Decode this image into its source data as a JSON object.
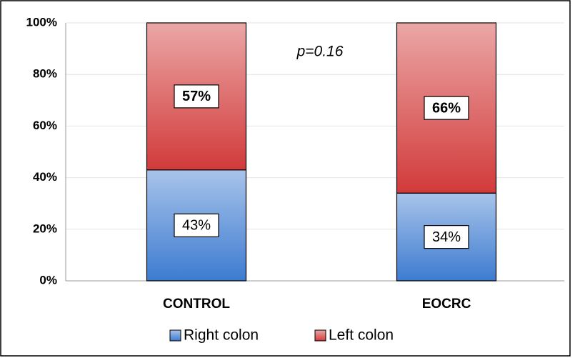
{
  "chart_data": {
    "type": "stacked_bar",
    "categories": [
      "CONTROL",
      "EOCRC"
    ],
    "series": [
      {
        "name": "Right colon",
        "color": "#3d7bd0",
        "values": [
          43,
          34
        ],
        "value_labels": [
          "43%",
          "34%"
        ]
      },
      {
        "name": "Left colon",
        "color": "#d23a3a",
        "values": [
          57,
          66
        ],
        "value_labels": [
          "57%",
          "66%"
        ]
      }
    ],
    "ylim": [
      0,
      100
    ],
    "yticks": [
      {
        "value": 0,
        "label": "0%"
      },
      {
        "value": 20,
        "label": "20%"
      },
      {
        "value": 40,
        "label": "40%"
      },
      {
        "value": 60,
        "label": "60%"
      },
      {
        "value": 80,
        "label": "80%"
      },
      {
        "value": 100,
        "label": "100%"
      }
    ],
    "grid": true,
    "annotation": "p=0.16",
    "legend": "bottom"
  }
}
